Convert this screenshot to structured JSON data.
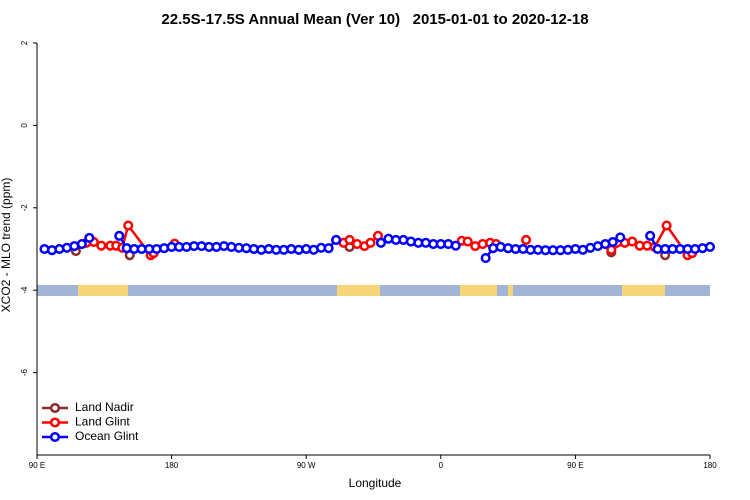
{
  "chart_data": {
    "type": "line",
    "title": "22.5S-17.5S Annual Mean (Ver 10)   2015-01-01 to 2020-12-18",
    "x_label": "Longitude",
    "y_label": "XCO2 - MLO trend (ppm)",
    "xlim": [
      90,
      540
    ],
    "xticks": [
      {
        "value": 90,
        "label": "90 E"
      },
      {
        "value": 180,
        "label": "180"
      },
      {
        "value": 270,
        "label": "90 W"
      },
      {
        "value": 360,
        "label": "0"
      },
      {
        "value": 450,
        "label": "90 E"
      },
      {
        "value": 540,
        "label": "180"
      }
    ],
    "ylim": [
      -8,
      2
    ],
    "yticks": [
      -6,
      -4,
      -2,
      0,
      2
    ],
    "legend": "bottom left",
    "series": [
      {
        "name": "Land Nadir",
        "color": "#8b2a2a",
        "x": [
          116,
          null,
          152,
          null,
          299,
          null,
          474,
          null,
          510
        ],
        "values": [
          -3.05,
          null,
          -3.15,
          null,
          -2.95,
          null,
          -3.08,
          null,
          -3.15
        ]
      },
      {
        "name": "Land Glint",
        "color": "#ff0000",
        "x": [
          115,
          123,
          128,
          133,
          139,
          143,
          147,
          151,
          166,
          168,
          null,
          182,
          null,
          290,
          295,
          299,
          304,
          309,
          313,
          318,
          null,
          374,
          378,
          383,
          388,
          393,
          397,
          405,
          null,
          417,
          null,
          474,
          483,
          488,
          493,
          498,
          503,
          511,
          525,
          528
        ],
        "values": [
          -2.93,
          -2.85,
          -2.83,
          -2.92,
          -2.92,
          -2.92,
          -2.97,
          -2.43,
          -3.15,
          -3.1,
          null,
          -2.87,
          null,
          -2.78,
          -2.85,
          -2.78,
          -2.88,
          -2.93,
          -2.85,
          -2.68,
          null,
          -2.8,
          -2.82,
          -2.93,
          -2.88,
          -2.85,
          -2.88,
          -2.98,
          null,
          -2.78,
          null,
          -3.02,
          -2.85,
          -2.82,
          -2.92,
          -2.92,
          -2.95,
          -2.43,
          -3.15,
          -3.1
        ]
      },
      {
        "name": "Ocean Glint",
        "color": "#0000ff",
        "x": [
          95,
          100,
          105,
          110,
          115,
          120,
          125,
          null,
          145,
          150,
          155,
          160,
          165,
          170,
          175,
          180,
          185,
          190,
          195,
          200,
          205,
          210,
          215,
          220,
          225,
          230,
          235,
          240,
          245,
          250,
          255,
          260,
          265,
          270,
          275,
          280,
          285,
          290,
          null,
          320,
          325,
          330,
          335,
          340,
          345,
          350,
          355,
          360,
          365,
          370,
          null,
          390,
          395,
          400,
          405,
          410,
          415,
          420,
          425,
          430,
          435,
          440,
          445,
          450,
          455,
          460,
          465,
          470,
          475,
          480,
          null,
          500,
          505,
          510,
          515,
          520,
          525,
          530,
          535,
          540
        ],
        "values": [
          -3.0,
          -3.03,
          -3.0,
          -2.97,
          -2.93,
          -2.88,
          -2.73,
          null,
          -2.68,
          -2.98,
          -3.0,
          -3.0,
          -3.0,
          -3.0,
          -2.98,
          -2.95,
          -2.95,
          -2.95,
          -2.93,
          -2.93,
          -2.95,
          -2.95,
          -2.93,
          -2.95,
          -2.97,
          -2.98,
          -3.0,
          -3.02,
          -3.0,
          -3.02,
          -3.02,
          -3.0,
          -3.02,
          -3.0,
          -3.02,
          -2.97,
          -2.98,
          -2.78,
          null,
          -2.85,
          -2.75,
          -2.78,
          -2.78,
          -2.82,
          -2.85,
          -2.85,
          -2.88,
          -2.88,
          -2.88,
          -2.92,
          null,
          -3.22,
          -2.98,
          -2.95,
          -2.98,
          -3.0,
          -3.0,
          -3.02,
          -3.02,
          -3.03,
          -3.03,
          -3.03,
          -3.02,
          -3.0,
          -3.02,
          -2.97,
          -2.93,
          -2.88,
          -2.83,
          -2.72,
          null,
          -2.68,
          -3.0,
          -3.0,
          -3.0,
          -3.0,
          -3.0,
          -3.0,
          -2.98,
          -2.95
        ]
      }
    ]
  }
}
